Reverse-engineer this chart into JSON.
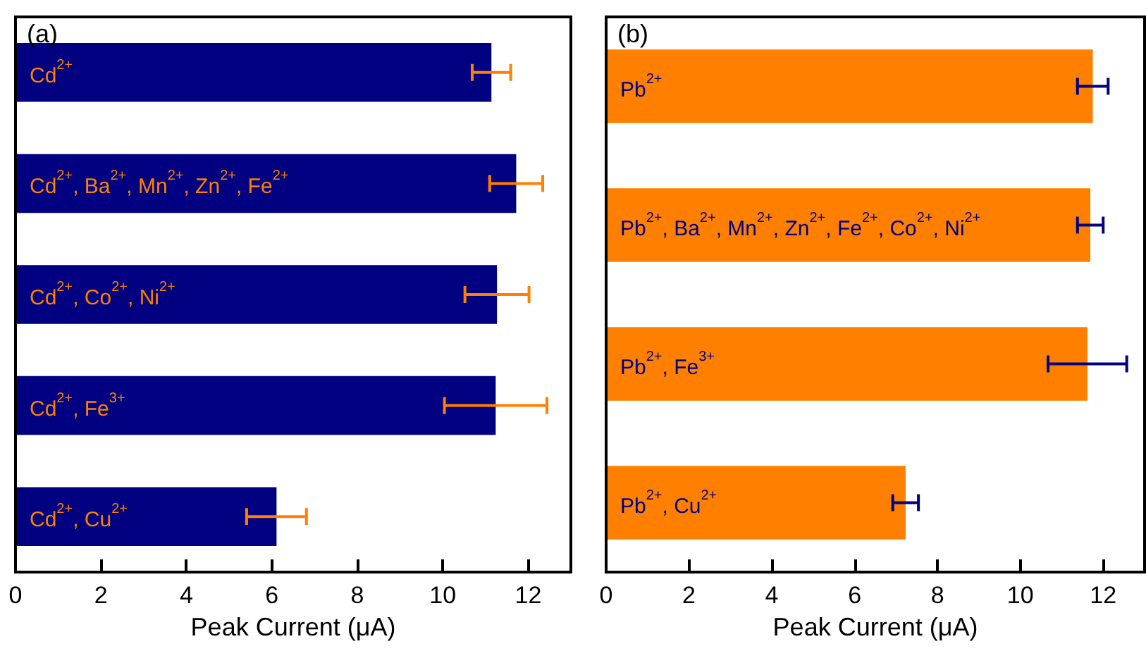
{
  "chart_data": [
    {
      "type": "bar",
      "title": "(a)",
      "xlabel": "Peak Current (μA)",
      "orientation": "horizontal",
      "xlim": [
        0,
        13
      ],
      "xticks": [
        0,
        2,
        4,
        6,
        8,
        10,
        12
      ],
      "grid": false,
      "categories": [
        "Cd$^{2+}$",
        "Cd$^{2+}$, Ba$^{2+}$, Mn$^{2+}$, Zn$^{2+}$, Fe$^{2+}$",
        "Cd$^{2+}$, Co$^{2+}$, Ni$^{2+}$",
        "Cd$^{2+}$, Fe$^{3+}$",
        "Cd$^{2+}$, Cu$^{2+}$"
      ],
      "series": [
        {
          "color": "#000080",
          "values": [
            11.14,
            11.72,
            11.27,
            11.24,
            6.11
          ],
          "errors": [
            0.45,
            0.62,
            0.75,
            1.2,
            0.7
          ]
        }
      ]
    },
    {
      "type": "bar",
      "title": "(b)",
      "xlabel": "Peak Current (μA)",
      "orientation": "horizontal",
      "xlim": [
        0,
        13
      ],
      "xticks": [
        0,
        2,
        4,
        6,
        8,
        10,
        12
      ],
      "grid": false,
      "categories": [
        "Pb$^{2+}$",
        "Pb$^{2+}$, Ba$^{2+}$, Mn$^{2+}$, Zn$^{2+}$, Fe$^{2+}$, Co$^{2+}$, Ni$^{2+}$",
        "Pb$^{2+}$, Fe$^{3+}$",
        "Pb$^{2+}$, Cu$^{2+}$"
      ],
      "series": [
        {
          "color": "#ff8000",
          "values": [
            11.75,
            11.69,
            11.62,
            7.23
          ],
          "errors": [
            0.37,
            0.31,
            0.95,
            0.31
          ]
        }
      ]
    }
  ]
}
